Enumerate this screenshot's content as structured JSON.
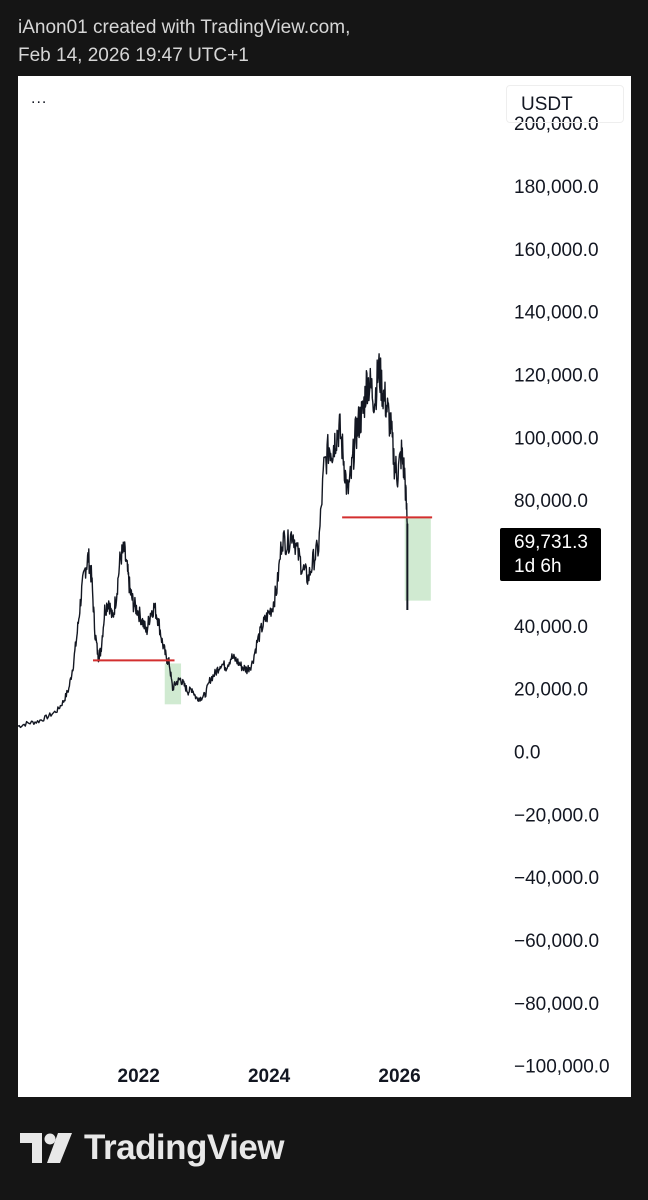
{
  "header": {
    "line1": "iAnon01 created with TradingView.com,",
    "line2": "Feb 14, 2026 19:47 UTC+1"
  },
  "toolbar": {
    "menu": "..."
  },
  "currency": "USDT",
  "price_label": {
    "price": "69,731.3",
    "countdown": "1d 6h"
  },
  "footer": {
    "brand": "TradingView"
  },
  "colors": {
    "candles": "#131722",
    "support_line": "#d32f2f",
    "zone_fill": "#c8e6c9"
  },
  "chart_data": {
    "type": "line",
    "title": "",
    "xlabel": "",
    "ylabel": "",
    "ylim": [
      -110000,
      215000
    ],
    "yticks": [
      200000,
      180000,
      160000,
      140000,
      120000,
      100000,
      80000,
      40000,
      20000,
      0,
      -20000,
      -40000,
      -60000,
      -80000,
      -100000
    ],
    "ytick_labels": [
      "200,000.0",
      "180,000.0",
      "160,000.0",
      "140,000.0",
      "120,000.0",
      "100,000.0",
      "80,000.0",
      "40,000.0",
      "20,000.0",
      "0.0",
      "−20,000.0",
      "−40,000.0",
      "−60,000.0",
      "−80,000.0",
      "−100,000.0"
    ],
    "xlim": [
      2020.15,
      2027.51
    ],
    "xticks": [
      2022,
      2024,
      2026
    ],
    "xtick_labels": [
      "2022",
      "2024",
      "2026"
    ],
    "grid": false,
    "series": [
      {
        "x": [
          2020.15,
          2020.3,
          2020.45,
          2020.6,
          2020.75,
          2020.85,
          2020.93,
          2021.0,
          2021.06,
          2021.12,
          2021.18,
          2021.23,
          2021.28,
          2021.33,
          2021.38,
          2021.42,
          2021.48,
          2021.54,
          2021.6,
          2021.66,
          2021.72,
          2021.78,
          2021.83,
          2021.87,
          2021.92,
          2021.98,
          2022.05,
          2022.12,
          2022.18,
          2022.24,
          2022.3,
          2022.36,
          2022.42,
          2022.47,
          2022.52,
          2022.58,
          2022.64,
          2022.7,
          2022.76,
          2022.82,
          2022.88,
          2022.95,
          2023.02,
          2023.1,
          2023.18,
          2023.26,
          2023.34,
          2023.42,
          2023.5,
          2023.58,
          2023.66,
          2023.74,
          2023.82,
          2023.9,
          2023.97,
          2024.05,
          2024.12,
          2024.2,
          2024.28,
          2024.36,
          2024.44,
          2024.52,
          2024.6,
          2024.68,
          2024.76,
          2024.84,
          2024.92,
          2024.97,
          2025.02,
          2025.08,
          2025.14,
          2025.2,
          2025.26,
          2025.32,
          2025.38,
          2025.44,
          2025.5,
          2025.56,
          2025.62,
          2025.68,
          2025.74,
          2025.8,
          2025.86,
          2025.92,
          2025.97,
          2026.03,
          2026.08,
          2026.12
        ],
        "y": [
          8000,
          9000,
          9500,
          11000,
          13000,
          16000,
          20000,
          28000,
          38000,
          50000,
          58000,
          62000,
          55000,
          38000,
          30000,
          32000,
          45000,
          48000,
          42000,
          50000,
          62000,
          64000,
          57000,
          51000,
          47000,
          45000,
          42000,
          38000,
          44000,
          46000,
          42000,
          35000,
          30000,
          28000,
          20000,
          22000,
          23000,
          21000,
          19000,
          20000,
          17000,
          17000,
          18000,
          23000,
          25000,
          28000,
          27000,
          30000,
          29000,
          27000,
          26000,
          28000,
          35000,
          40000,
          43000,
          46000,
          52000,
          68000,
          66000,
          70000,
          63000,
          58000,
          55000,
          61000,
          65000,
          90000,
          97000,
          96000,
          100000,
          103000,
          94000,
          82000,
          88000,
          100000,
          105000,
          108000,
          118000,
          116000,
          112000,
          122000,
          115000,
          110000,
          104000,
          92000,
          88000,
          95000,
          88000,
          72000
        ]
      }
    ],
    "last_candle": {
      "x": 2026.12,
      "open": 72000,
      "high": 72500,
      "low": 45000,
      "close": 69731.3
    },
    "annotations": [
      {
        "type": "hline",
        "y": 29000,
        "x_start": 2021.3,
        "x_end": 2022.55
      },
      {
        "type": "zone",
        "x_start": 2022.4,
        "x_end": 2022.65,
        "y_top": 28000,
        "y_bottom": 15000
      },
      {
        "type": "hline",
        "y": 74500,
        "x_start": 2025.12,
        "x_end": 2026.5
      },
      {
        "type": "zone",
        "x_start": 2026.08,
        "x_end": 2026.48,
        "y_top": 74500,
        "y_bottom": 48000
      }
    ]
  }
}
